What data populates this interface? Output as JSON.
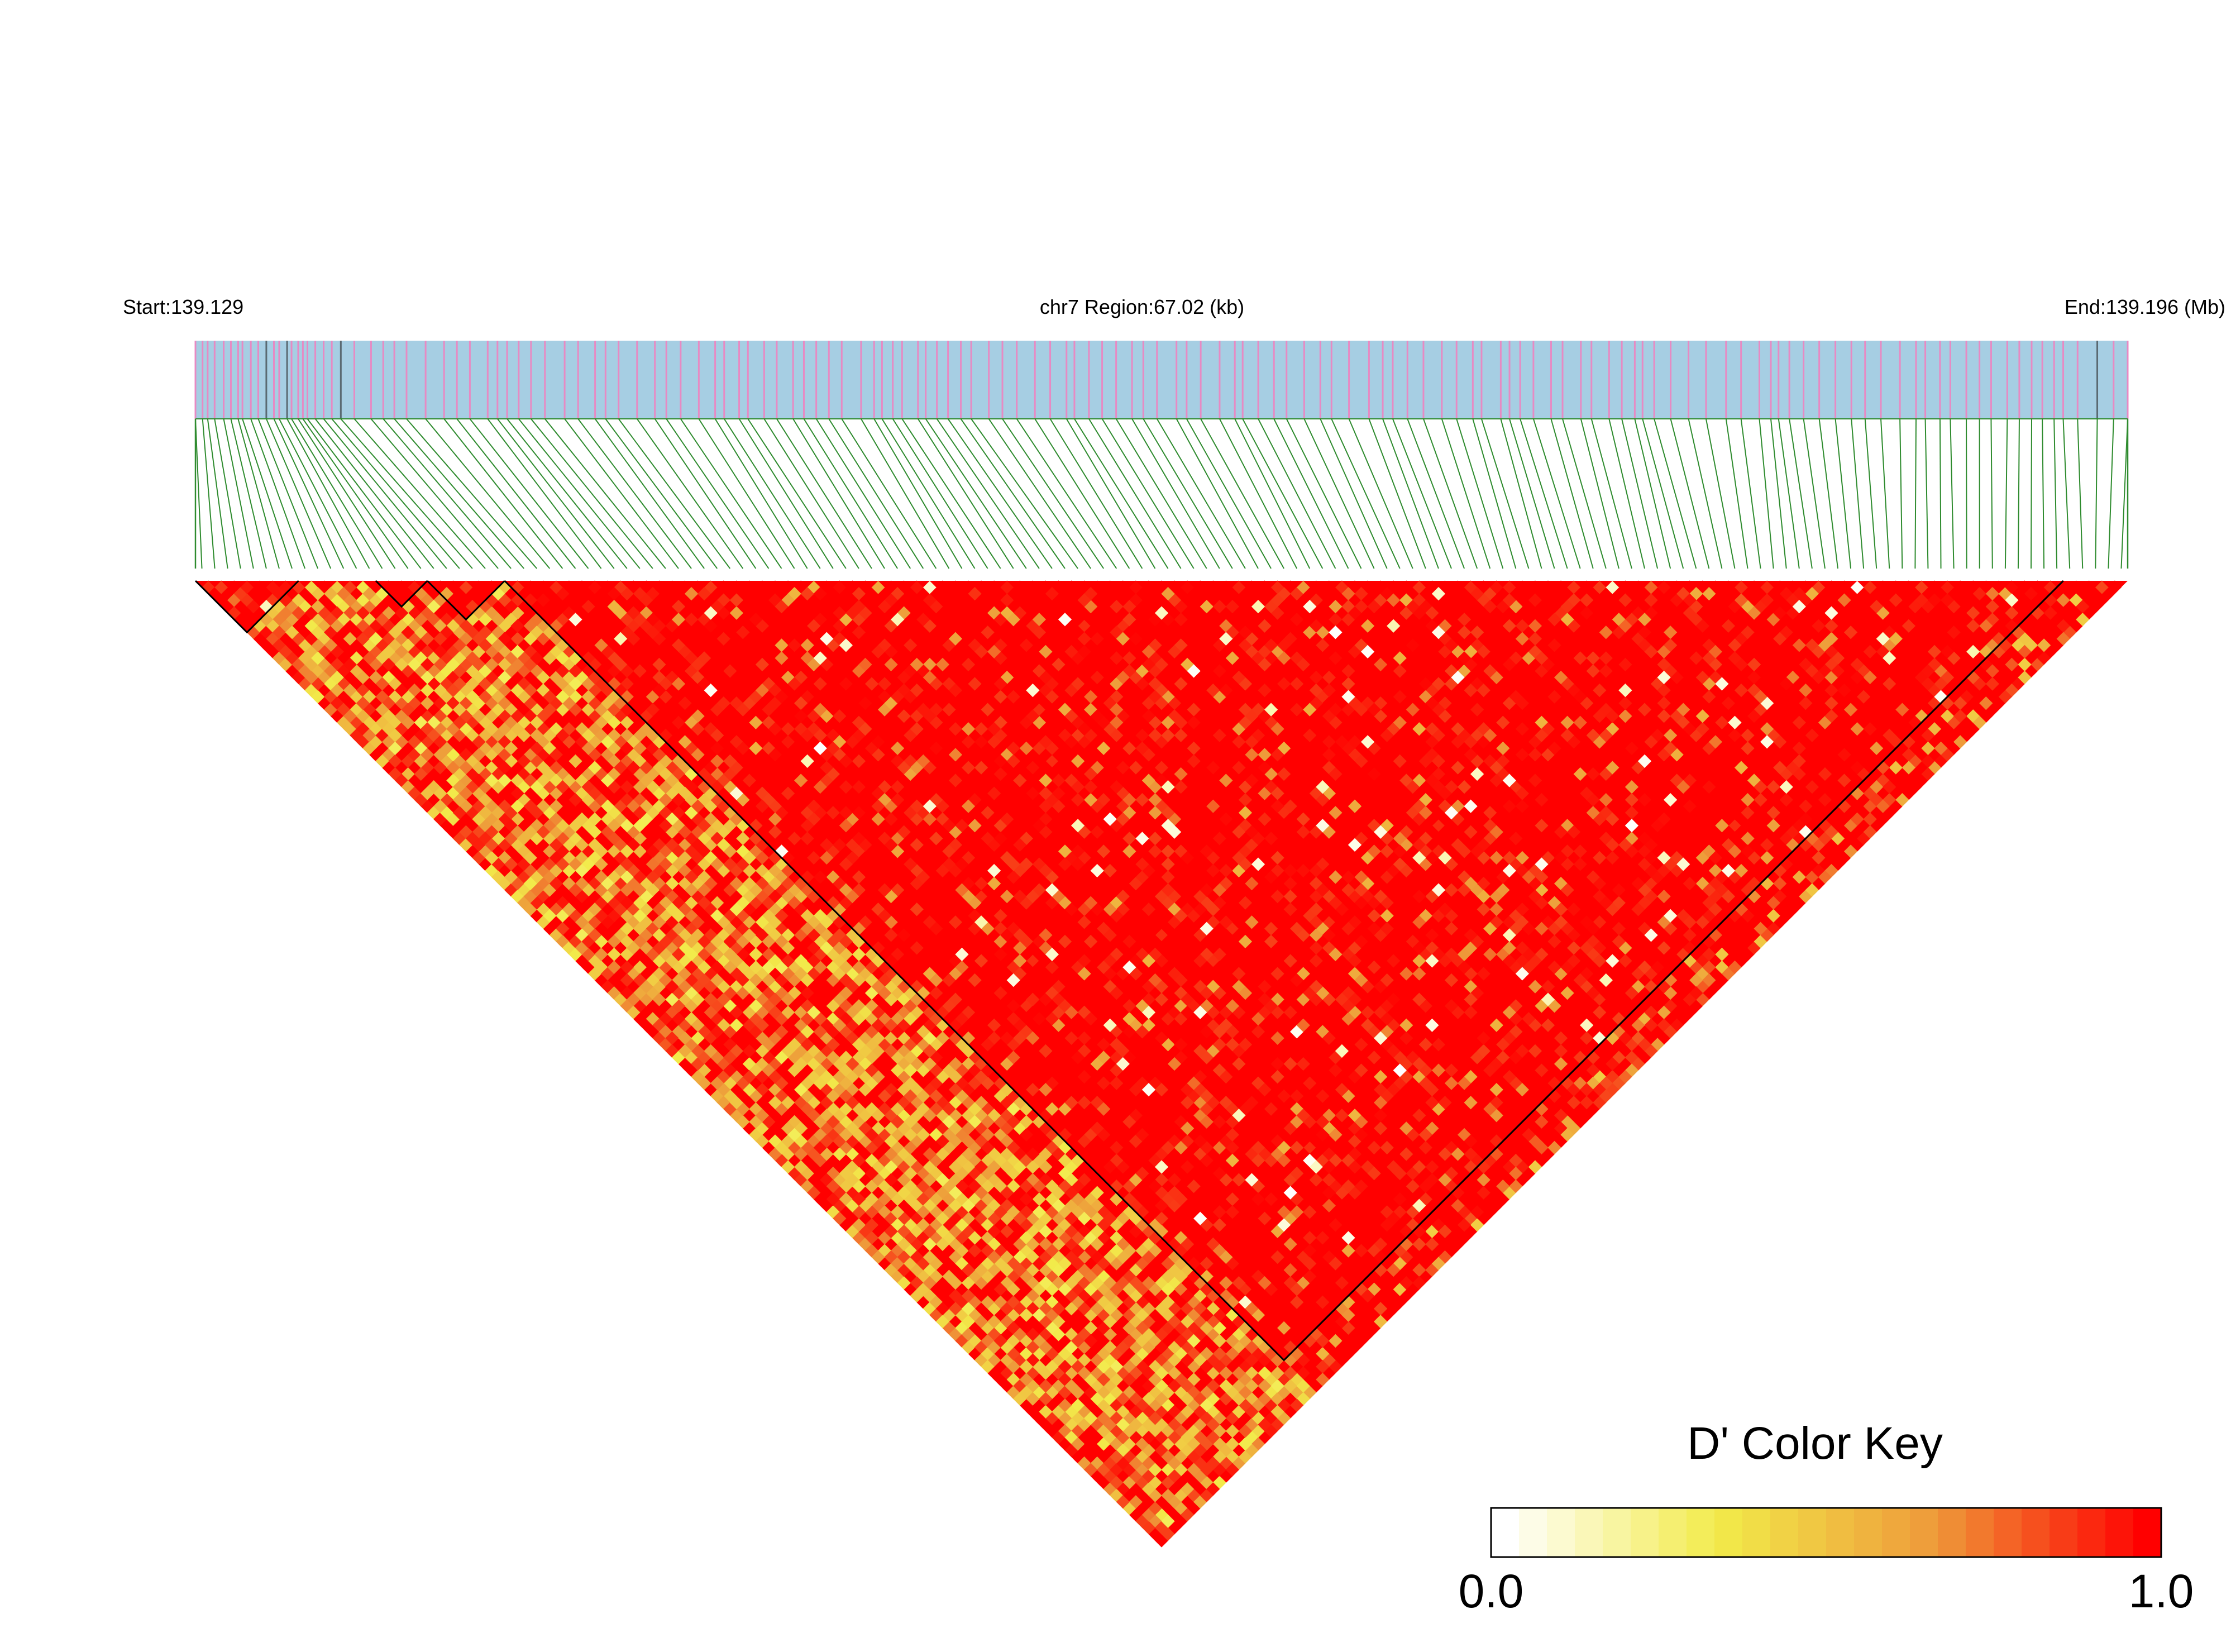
{
  "chart_data": {
    "type": "heatmap",
    "subtype": "ld-triangle-heatmap",
    "header": {
      "start_label": "Start:139.129",
      "region_label": "chr7 Region:67.02 (kb)",
      "end_label": "End:139.196 (Mb)"
    },
    "region": {
      "chromosome": "chr7",
      "start_mb": 139.129,
      "end_mb": 139.196,
      "length_kb": 67.02
    },
    "snp_count": 150,
    "gene_track": {
      "background_color": "#a6cee3",
      "marker_color": "#e78ac3",
      "dark_marker_color": "#5a6a72"
    },
    "connector_color": "#2e8b2e",
    "blocks_ld": [
      {
        "from_snp": 0,
        "to_snp": 7
      },
      {
        "from_snp": 14,
        "to_snp": 17
      },
      {
        "from_snp": 18,
        "to_snp": 23
      },
      {
        "from_snp": 24,
        "to_snp": 144
      }
    ],
    "color_key": {
      "title": "D' Color Key",
      "min_label": "0.0",
      "max_label": "1.0",
      "min": 0.0,
      "max": 1.0,
      "colors": [
        "#ffffff",
        "#f2eb4a",
        "#ee9a3a",
        "#ff0000"
      ]
    }
  }
}
